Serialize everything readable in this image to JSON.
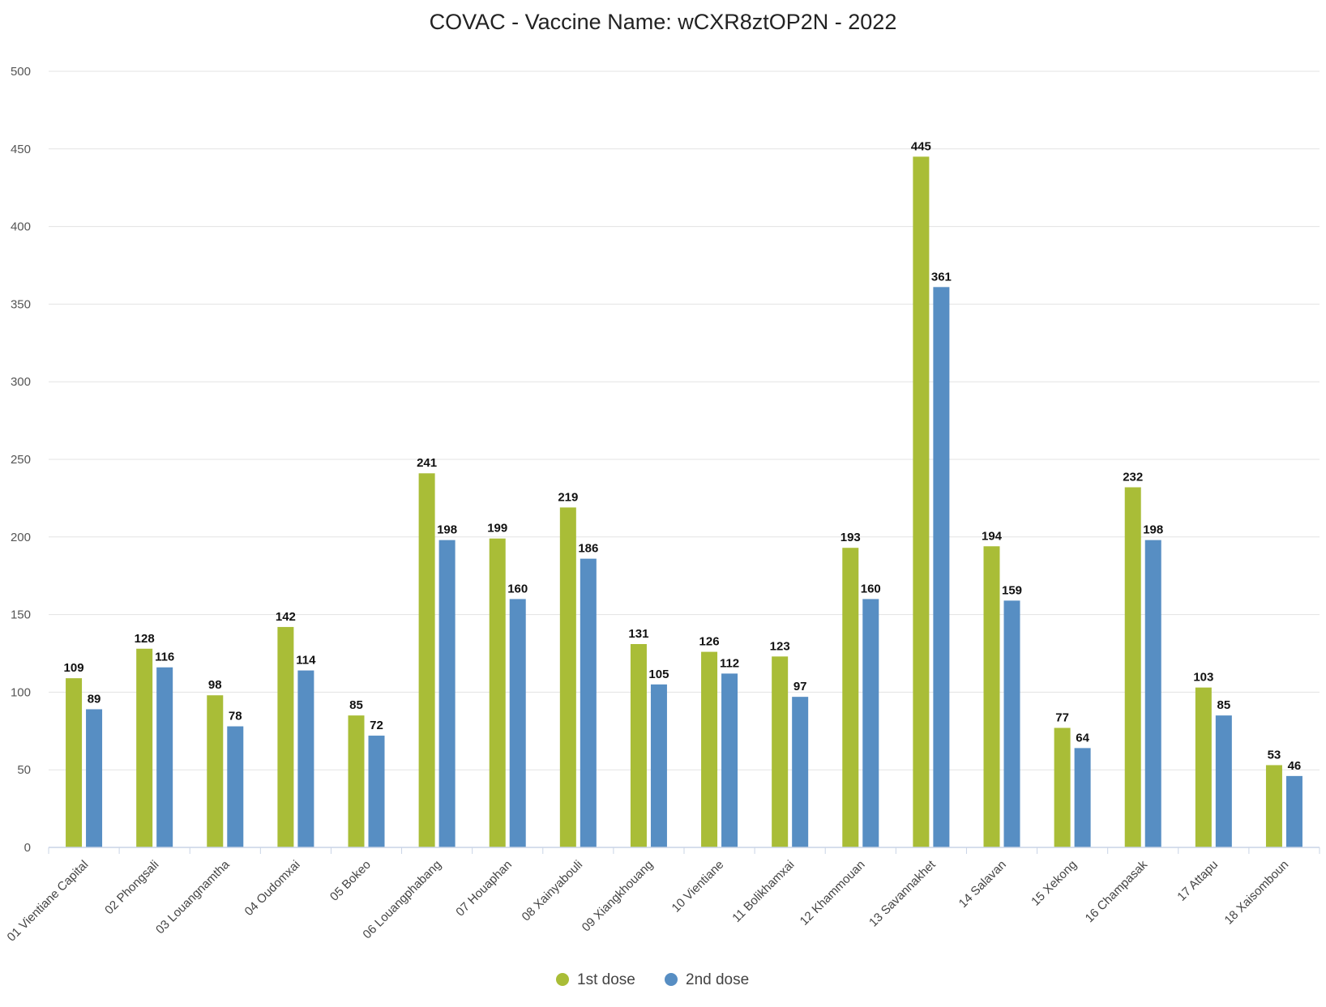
{
  "chart_data": {
    "type": "bar",
    "title": "COVAC - Vaccine Name: wCXR8ztOP2N - 2022",
    "xlabel": "",
    "ylabel": "",
    "ylim": [
      0,
      500
    ],
    "yticks": [
      0,
      50,
      100,
      150,
      200,
      250,
      300,
      350,
      400,
      450,
      500
    ],
    "grid": true,
    "legend_position": "bottom",
    "categories": [
      "01 Vientiane Capital",
      "02 Phongsali",
      "03 Louangnamtha",
      "04 Oudomxai",
      "05 Bokeo",
      "06 Louangphabang",
      "07 Houaphan",
      "08 Xainyabouli",
      "09 Xiangkhouang",
      "10 Vientiane",
      "11 Bolikhamxai",
      "12 Khammouan",
      "13 Savannakhet",
      "14 Salavan",
      "15 Xekong",
      "16 Champasak",
      "17 Attapu",
      "18 Xaisomboun"
    ],
    "series": [
      {
        "name": "1st dose",
        "color": "#a9bd37",
        "values": [
          109,
          128,
          98,
          142,
          85,
          241,
          199,
          219,
          131,
          126,
          123,
          193,
          445,
          194,
          77,
          232,
          103,
          53
        ]
      },
      {
        "name": "2nd dose",
        "color": "#578ec3",
        "values": [
          89,
          116,
          78,
          114,
          72,
          198,
          160,
          186,
          105,
          112,
          97,
          160,
          361,
          159,
          64,
          198,
          85,
          46
        ]
      }
    ]
  }
}
